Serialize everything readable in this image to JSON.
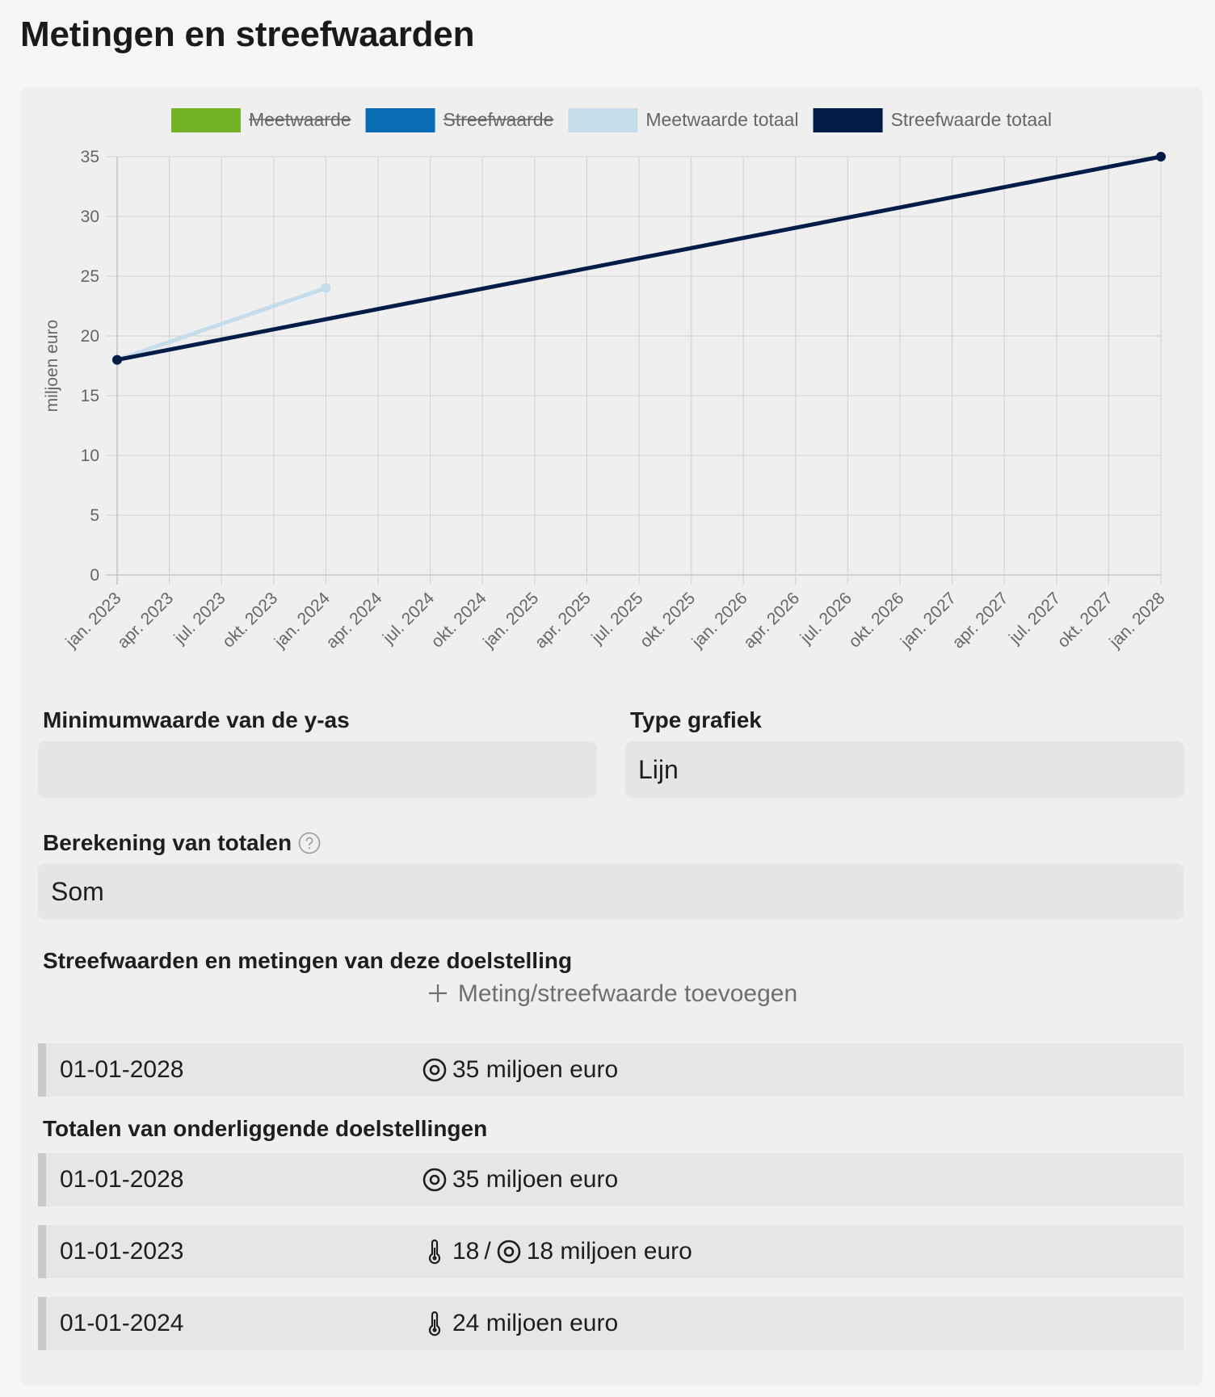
{
  "page": {
    "title": "Metingen en streefwaarden"
  },
  "chart_data": {
    "type": "line",
    "ylabel": "miljoen euro",
    "xlabel": "",
    "ylim": [
      0,
      35
    ],
    "y_ticks": [
      "0",
      "5",
      "10",
      "15",
      "20",
      "25",
      "30",
      "35"
    ],
    "x_ticks": [
      "jan. 2023",
      "apr. 2023",
      "jul. 2023",
      "okt. 2023",
      "jan. 2024",
      "apr. 2024",
      "jul. 2024",
      "okt. 2024",
      "jan. 2025",
      "apr. 2025",
      "jul. 2025",
      "okt. 2025",
      "jan. 2026",
      "apr. 2026",
      "jul. 2026",
      "okt. 2026",
      "jan. 2027",
      "apr. 2027",
      "jul. 2027",
      "okt. 2027",
      "jan. 2028"
    ],
    "grid": true,
    "legend_position": "top",
    "legend": [
      {
        "label": "Meetwaarde",
        "color": "#73b224",
        "hidden": true
      },
      {
        "label": "Streefwaarde",
        "color": "#0b6cb5",
        "hidden": true
      },
      {
        "label": "Meetwaarde totaal",
        "color": "#c5dcea",
        "hidden": false
      },
      {
        "label": "Streefwaarde totaal",
        "color": "#011c46",
        "hidden": false
      }
    ],
    "series": [
      {
        "name": "Meetwaarde",
        "points": [],
        "hidden": true
      },
      {
        "name": "Streefwaarde",
        "points": [],
        "hidden": true
      },
      {
        "name": "Meetwaarde totaal",
        "color": "#c5dcea",
        "points": [
          {
            "x": "2023-01-01",
            "y": 18
          },
          {
            "x": "2024-01-01",
            "y": 24
          }
        ]
      },
      {
        "name": "Streefwaarde totaal",
        "color": "#011c46",
        "points": [
          {
            "x": "2023-01-01",
            "y": 18
          },
          {
            "x": "2028-01-01",
            "y": 35
          }
        ]
      }
    ]
  },
  "form": {
    "y_min": {
      "label": "Minimumwaarde van de y-as",
      "value": ""
    },
    "chart_type": {
      "label": "Type grafiek",
      "value": "Lijn"
    },
    "totals_calc": {
      "label": "Berekening van totalen",
      "value": "Som",
      "help_icon": "help-circle-icon"
    }
  },
  "own": {
    "heading": "Streefwaarden en metingen van deze doelstelling",
    "add_label": "Meting/streefwaarde toevoegen",
    "rows": [
      {
        "date": "01-01-2028",
        "icons": [
          "target"
        ],
        "text": "35 miljoen euro"
      }
    ]
  },
  "sub": {
    "heading": "Totalen van onderliggende doelstellingen",
    "rows": [
      {
        "date": "01-01-2028",
        "text": "35 miljoen euro"
      },
      {
        "date": "01-01-2023",
        "measure": "18",
        "sep": "/",
        "text": "18 miljoen euro"
      },
      {
        "date": "01-01-2024",
        "text": "24 miljoen euro"
      }
    ]
  }
}
